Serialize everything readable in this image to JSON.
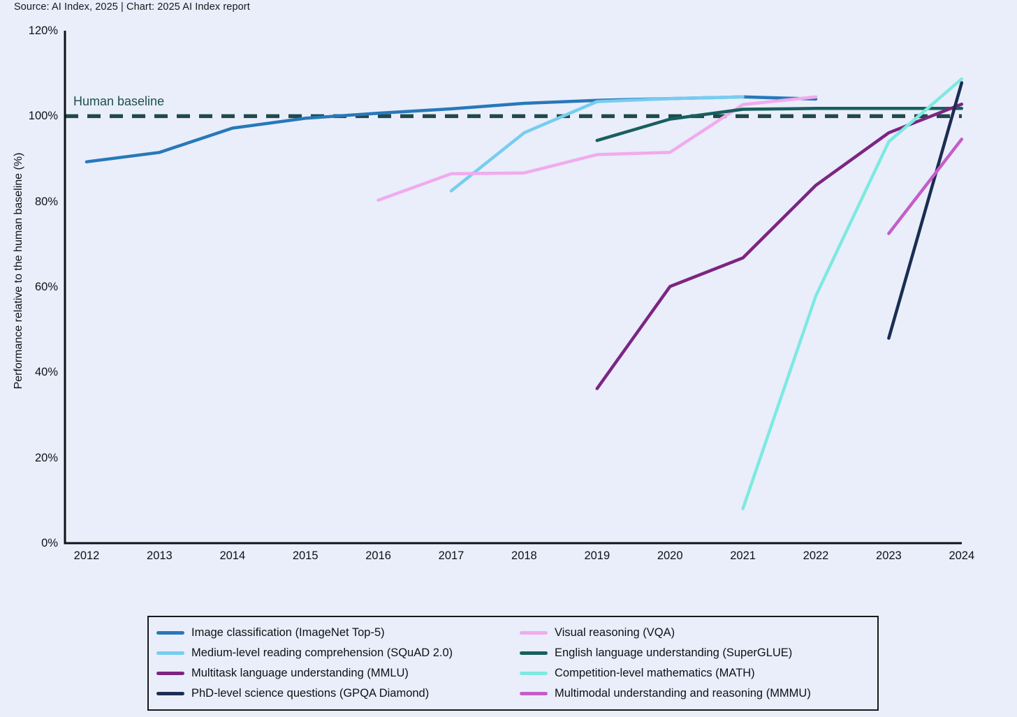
{
  "page": {
    "background": "#e9eefa",
    "source_line": "Source: AI Index, 2025 | Chart: 2025 AI Index report"
  },
  "chart_data": {
    "type": "line",
    "title": "",
    "xlabel": "",
    "ylabel": "Performance relative to the human baseline (%)",
    "ylim": [
      0,
      120
    ],
    "xlim": [
      2012,
      2024
    ],
    "grid": false,
    "legend_position": "bottom",
    "axis_color": "#0d1117",
    "y_ticks": [
      0,
      20,
      40,
      60,
      80,
      100,
      120
    ],
    "y_tick_labels": [
      "0%",
      "20%",
      "40%",
      "60%",
      "80%",
      "100%",
      "120%"
    ],
    "x_ticks": [
      2012,
      2013,
      2014,
      2015,
      2016,
      2017,
      2018,
      2019,
      2020,
      2021,
      2022,
      2023,
      2024
    ],
    "baseline": {
      "label": "Human baseline",
      "value": 100,
      "style": "dashed",
      "label_color": "#1d4f4f",
      "dash_color": "#20494a"
    },
    "series": [
      {
        "name": "Image classification (ImageNet Top-5)",
        "color": "#2878b9",
        "z": 0,
        "x": [
          2012,
          2013,
          2014,
          2015,
          2016,
          2017,
          2018,
          2019,
          2020,
          2021,
          2022
        ],
        "values": [
          89.3,
          91.5,
          97.2,
          99.5,
          100.7,
          101.7,
          103.0,
          103.7,
          104.1,
          104.5,
          104.0
        ]
      },
      {
        "name": "Medium-level reading comprehension (SQuAD 2.0)",
        "color": "#76cdf0",
        "z": 1,
        "x": [
          2017,
          2018,
          2019,
          2020,
          2021
        ],
        "values": [
          82.5,
          96.1,
          103.4,
          104.1,
          104.5
        ]
      },
      {
        "name": "Multitask language understanding (MMLU)",
        "color": "#7c2583",
        "z": 4,
        "x": [
          2019,
          2020,
          2021,
          2022,
          2023,
          2024
        ],
        "values": [
          36.2,
          60.1,
          66.8,
          83.8,
          96.1,
          102.8
        ]
      },
      {
        "name": "PhD-level science questions (GPQA Diamond)",
        "color": "#1b2d52",
        "z": 6,
        "x": [
          2023,
          2024
        ],
        "values": [
          48.0,
          107.8
        ]
      },
      {
        "name": "Visual reasoning (VQA)",
        "color": "#f0abee",
        "z": 2,
        "x": [
          2016,
          2017,
          2018,
          2019,
          2020,
          2021,
          2022
        ],
        "values": [
          80.3,
          86.5,
          86.7,
          91.0,
          91.5,
          102.7,
          104.5
        ]
      },
      {
        "name": "English language understanding (SuperGLUE)",
        "color": "#17605d",
        "z": 3,
        "x": [
          2019,
          2020,
          2021,
          2022,
          2023,
          2024
        ],
        "values": [
          94.3,
          99.3,
          101.6,
          101.8,
          101.8,
          101.8
        ]
      },
      {
        "name": "Competition-level mathematics (MATH)",
        "color": "#7ee9e1",
        "z": 5,
        "x": [
          2021,
          2022,
          2023,
          2024
        ],
        "values": [
          8.1,
          57.9,
          94.0,
          108.7
        ]
      },
      {
        "name": "Multimodal understanding and reasoning (MMMU)",
        "color": "#c45dc9",
        "z": 7,
        "x": [
          2023,
          2024
        ],
        "values": [
          72.5,
          94.6
        ]
      }
    ]
  }
}
